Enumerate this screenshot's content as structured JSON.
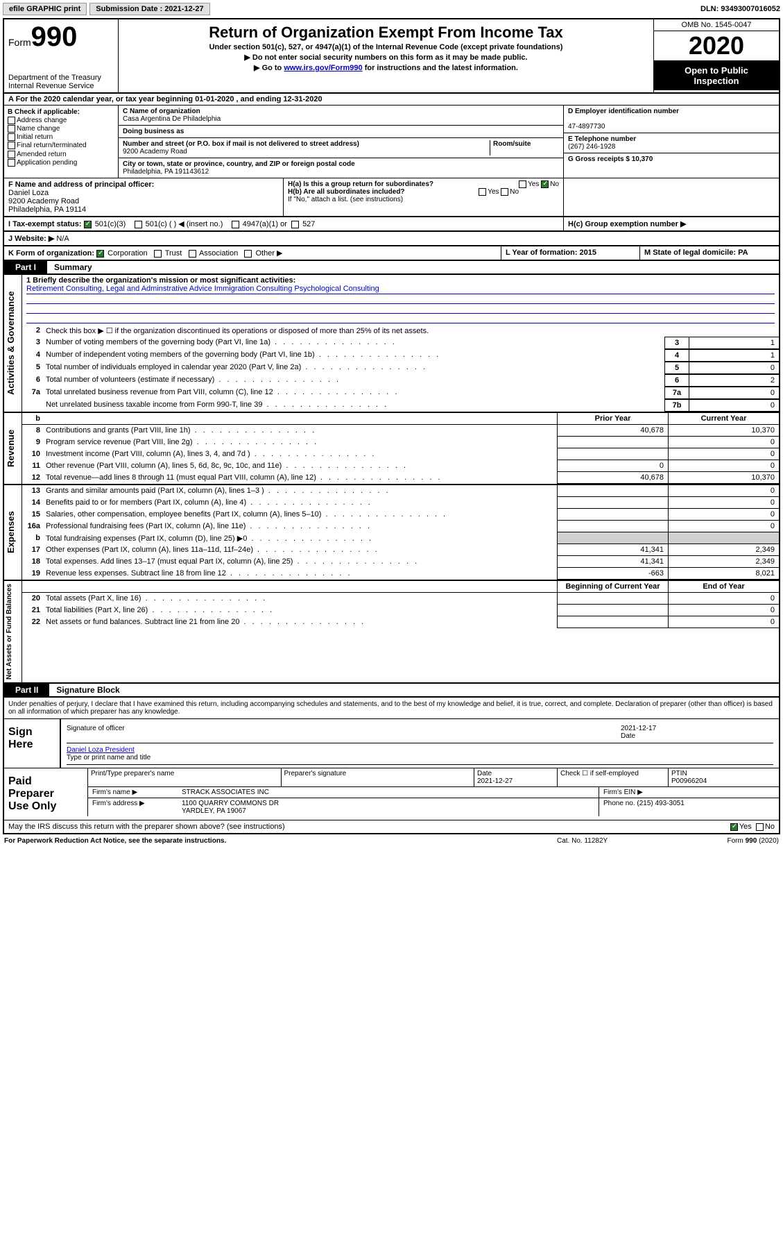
{
  "toolbar": {
    "efile": "efile GRAPHIC print",
    "submission_label": "Submission Date : 2021-12-27",
    "dln": "DLN: 93493007016052"
  },
  "header": {
    "form_word": "Form",
    "form_num": "990",
    "dept": "Department of the Treasury",
    "irs": "Internal Revenue Service",
    "title": "Return of Organization Exempt From Income Tax",
    "subtitle": "Under section 501(c), 527, or 4947(a)(1) of the Internal Revenue Code (except private foundations)",
    "ssn": "▶ Do not enter social security numbers on this form as it may be made public.",
    "goto_pre": "▶ Go to ",
    "goto_link": "www.irs.gov/Form990",
    "goto_post": " for instructions and the latest information.",
    "omb": "OMB No. 1545-0047",
    "year": "2020",
    "inspect1": "Open to Public",
    "inspect2": "Inspection"
  },
  "sectionA": "A   For the 2020 calendar year, or tax year beginning 01-01-2020    , and ending 12-31-2020",
  "colB": {
    "hdr": "B Check if applicable:",
    "items": [
      "Address change",
      "Name change",
      "Initial return",
      "Final return/terminated",
      "Amended return",
      "Application pending"
    ]
  },
  "colC": {
    "name_lbl": "C Name of organization",
    "name": "Casa Argentina De Philadelphia",
    "dba_lbl": "Doing business as",
    "street_lbl": "Number and street (or P.O. box if mail is not delivered to street address)",
    "room_lbl": "Room/suite",
    "street": "9200 Academy Road",
    "city_lbl": "City or town, state or province, country, and ZIP or foreign postal code",
    "city": "Philadelphia, PA  191143612"
  },
  "colD": {
    "ein_lbl": "D Employer identification number",
    "ein": "47-4897730",
    "tel_lbl": "E Telephone number",
    "tel": "(267) 246-1928",
    "gross_lbl": "G Gross receipts $ 10,370"
  },
  "rowF": {
    "f_lbl": "F  Name and address of principal officer:",
    "f_name": "Daniel Loza",
    "f_addr": "9200 Academy Road",
    "f_city": "Philadelphia, PA  19114"
  },
  "rowH": {
    "ha": "H(a)  Is this a group return for subordinates?",
    "hb": "H(b)  Are all subordinates included?",
    "hb_note": "If \"No,\" attach a list. (see instructions)",
    "hc": "H(c)  Group exemption number ▶",
    "yes": "Yes",
    "no": "No"
  },
  "rowI": {
    "lbl": "I   Tax-exempt status:",
    "opts": [
      "501(c)(3)",
      "501(c) (  ) ◀ (insert no.)",
      "4947(a)(1) or",
      "527"
    ]
  },
  "rowJ_lbl": "J   Website: ▶",
  "rowJ_val": "N/A",
  "rowK": {
    "lbl": "K Form of organization:",
    "opts": [
      "Corporation",
      "Trust",
      "Association",
      "Other ▶"
    ]
  },
  "rowL": "L Year of formation: 2015",
  "rowM": "M State of legal domicile: PA",
  "part1": {
    "tab": "Part I",
    "title": "Summary"
  },
  "mission_lbl": "1  Briefly describe the organization's mission or most significant activities:",
  "mission": "Retirement Consulting, Legal and Adminstrative Advice Immigration Consulting Psychological Consulting",
  "line2": "Check this box ▶ ☐  if the organization discontinued its operations or disposed of more than 25% of its net assets.",
  "summary_lines": [
    {
      "n": "3",
      "d": "Number of voting members of the governing body (Part VI, line 1a)",
      "box": "3",
      "v": "1"
    },
    {
      "n": "4",
      "d": "Number of independent voting members of the governing body (Part VI, line 1b)",
      "box": "4",
      "v": "1"
    },
    {
      "n": "5",
      "d": "Total number of individuals employed in calendar year 2020 (Part V, line 2a)",
      "box": "5",
      "v": "0"
    },
    {
      "n": "6",
      "d": "Total number of volunteers (estimate if necessary)",
      "box": "6",
      "v": "2"
    },
    {
      "n": "7a",
      "d": "Total unrelated business revenue from Part VIII, column (C), line 12",
      "box": "7a",
      "v": "0"
    },
    {
      "n": "",
      "d": "Net unrelated business taxable income from Form 990-T, line 39",
      "box": "7b",
      "v": "0"
    }
  ],
  "two_col_hdr": {
    "b": "b",
    "prior": "Prior Year",
    "current": "Current Year"
  },
  "revenue_lines": [
    {
      "n": "8",
      "d": "Contributions and grants (Part VIII, line 1h)",
      "p": "40,678",
      "c": "10,370"
    },
    {
      "n": "9",
      "d": "Program service revenue (Part VIII, line 2g)",
      "p": "",
      "c": "0"
    },
    {
      "n": "10",
      "d": "Investment income (Part VIII, column (A), lines 3, 4, and 7d )",
      "p": "",
      "c": "0"
    },
    {
      "n": "11",
      "d": "Other revenue (Part VIII, column (A), lines 5, 6d, 8c, 9c, 10c, and 11e)",
      "p": "0",
      "c": "0"
    },
    {
      "n": "12",
      "d": "Total revenue—add lines 8 through 11 (must equal Part VIII, column (A), line 12)",
      "p": "40,678",
      "c": "10,370"
    }
  ],
  "expense_lines": [
    {
      "n": "13",
      "d": "Grants and similar amounts paid (Part IX, column (A), lines 1–3 )",
      "p": "",
      "c": "0"
    },
    {
      "n": "14",
      "d": "Benefits paid to or for members (Part IX, column (A), line 4)",
      "p": "",
      "c": "0"
    },
    {
      "n": "15",
      "d": "Salaries, other compensation, employee benefits (Part IX, column (A), lines 5–10)",
      "p": "",
      "c": "0"
    },
    {
      "n": "16a",
      "d": "Professional fundraising fees (Part IX, column (A), line 11e)",
      "p": "",
      "c": "0"
    },
    {
      "n": "b",
      "d": "Total fundraising expenses (Part IX, column (D), line 25) ▶0",
      "p": "shade",
      "c": "shade"
    },
    {
      "n": "17",
      "d": "Other expenses (Part IX, column (A), lines 11a–11d, 11f–24e)",
      "p": "41,341",
      "c": "2,349"
    },
    {
      "n": "18",
      "d": "Total expenses. Add lines 13–17 (must equal Part IX, column (A), line 25)",
      "p": "41,341",
      "c": "2,349"
    },
    {
      "n": "19",
      "d": "Revenue less expenses. Subtract line 18 from line 12",
      "p": "-663",
      "c": "8,021"
    }
  ],
  "net_hdr": {
    "b": "Beginning of Current Year",
    "e": "End of Year"
  },
  "net_lines": [
    {
      "n": "20",
      "d": "Total assets (Part X, line 16)",
      "p": "",
      "c": "0"
    },
    {
      "n": "21",
      "d": "Total liabilities (Part X, line 26)",
      "p": "",
      "c": "0"
    },
    {
      "n": "22",
      "d": "Net assets or fund balances. Subtract line 21 from line 20",
      "p": "",
      "c": "0"
    }
  ],
  "sidelabels": {
    "gov": "Activities & Governance",
    "rev": "Revenue",
    "exp": "Expenses",
    "net": "Net Assets or Fund Balances"
  },
  "part2": {
    "tab": "Part II",
    "title": "Signature Block"
  },
  "perjury": "Under penalties of perjury, I declare that I have examined this return, including accompanying schedules and statements, and to the best of my knowledge and belief, it is true, correct, and complete. Declaration of preparer (other than officer) is based on all information of which preparer has any knowledge.",
  "sign": {
    "here1": "Sign",
    "here2": "Here",
    "sig_lbl": "Signature of officer",
    "date_lbl": "Date",
    "date": "2021-12-17",
    "officer": "Daniel Loza  President",
    "type_lbl": "Type or print name and title"
  },
  "prep": {
    "lbl1": "Paid",
    "lbl2": "Preparer",
    "lbl3": "Use Only",
    "h1": "Print/Type preparer's name",
    "h2": "Preparer's signature",
    "h3_lbl": "Date",
    "h3": "2021-12-27",
    "h4": "Check ☐ if self-employed",
    "h5_lbl": "PTIN",
    "h5": "P00966204",
    "firm_lbl": "Firm's name   ▶",
    "firm": "STRACK ASSOCIATES INC",
    "ein_lbl": "Firm's EIN ▶",
    "addr_lbl": "Firm's address ▶",
    "addr1": "1100 QUARRY COMMONS DR",
    "addr2": "YARDLEY, PA  19067",
    "phone_lbl": "Phone no. (215) 493-3051"
  },
  "discuss": "May the IRS discuss this return with the preparer shown above? (see instructions)",
  "footer": {
    "f1": "For Paperwork Reduction Act Notice, see the separate instructions.",
    "f2": "Cat. No. 11282Y",
    "f3": "Form 990 (2020)"
  }
}
